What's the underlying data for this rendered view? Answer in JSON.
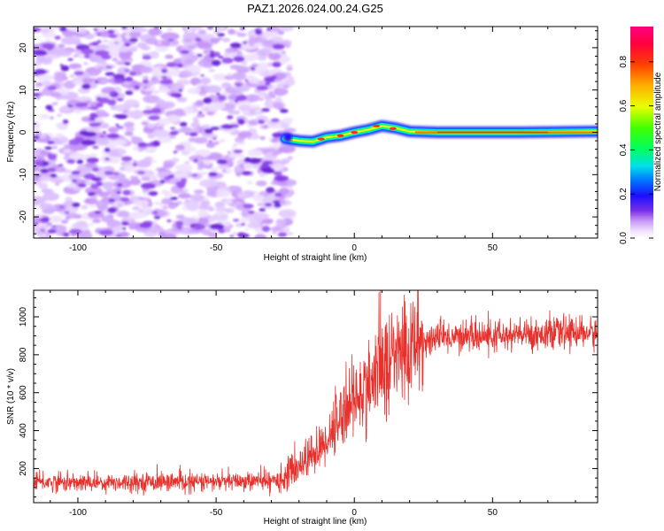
{
  "title": "PAZ1.2026.024.00.24.G25",
  "chart_data": [
    {
      "type": "heatmap",
      "name": "spectrogram",
      "xlabel": "Height of straight line (km)",
      "ylabel": "Frequency (Hz)",
      "xlim": [
        -116,
        88
      ],
      "ylim": [
        -25,
        25
      ],
      "xticks": [
        -100,
        -50,
        0,
        50
      ],
      "xtick_labels": [
        "-100",
        "-50",
        "0",
        "50"
      ],
      "yticks": [
        20,
        10,
        0,
        -10,
        -20
      ],
      "ytick_labels": [
        "20",
        "10",
        "0",
        "-10",
        "-20"
      ],
      "noise_region_x": [
        -116,
        -25
      ],
      "signal_track": [
        {
          "x": -25,
          "f": -1.5
        },
        {
          "x": -20,
          "f": -2.0
        },
        {
          "x": -15,
          "f": -2.2
        },
        {
          "x": -10,
          "f": -1.2
        },
        {
          "x": -5,
          "f": -0.8
        },
        {
          "x": 0,
          "f": 0.0
        },
        {
          "x": 5,
          "f": 0.6
        },
        {
          "x": 10,
          "f": 1.5
        },
        {
          "x": 15,
          "f": 1.0
        },
        {
          "x": 20,
          "f": 0.2
        },
        {
          "x": 30,
          "f": 0.0
        },
        {
          "x": 60,
          "f": 0.0
        },
        {
          "x": 88,
          "f": 0.2
        }
      ],
      "colorbar": {
        "label": "Normalized spectral amplitude",
        "ticks": [
          0.0,
          0.2,
          0.4,
          0.6,
          0.8
        ],
        "tick_labels": [
          "0.0",
          "0.2",
          "0.4",
          "0.6",
          "0.8"
        ],
        "range": [
          0.0,
          0.96
        ]
      }
    },
    {
      "type": "line",
      "name": "snr",
      "xlabel": "Height of straight line (km)",
      "ylabel": "SNR (10 * v/v)",
      "xlim": [
        -116,
        88
      ],
      "ylim": [
        20,
        1140
      ],
      "xticks": [
        -100,
        -50,
        0,
        50
      ],
      "xtick_labels": [
        "-100",
        "-50",
        "0",
        "50"
      ],
      "yticks": [
        200,
        400,
        600,
        800,
        1000
      ],
      "ytick_labels": [
        "200",
        "400",
        "600",
        "800",
        "1000"
      ],
      "color": "#e8312c",
      "series": [
        {
          "name": "SNR",
          "x": [
            -116,
            -100,
            -80,
            -60,
            -40,
            -30,
            -27,
            -25,
            -22,
            -20,
            -17,
            -15,
            -12,
            -10,
            -7,
            -5,
            -3,
            0,
            3,
            5,
            8,
            10,
            12,
            15,
            18,
            20,
            22,
            25,
            30,
            40,
            50,
            60,
            70,
            80,
            88
          ],
          "values": [
            130,
            125,
            130,
            128,
            132,
            135,
            140,
            160,
            190,
            220,
            250,
            280,
            300,
            360,
            420,
            480,
            530,
            560,
            600,
            650,
            700,
            740,
            760,
            790,
            820,
            840,
            860,
            870,
            890,
            900,
            895,
            905,
            910,
            920,
            910
          ]
        }
      ]
    }
  ]
}
